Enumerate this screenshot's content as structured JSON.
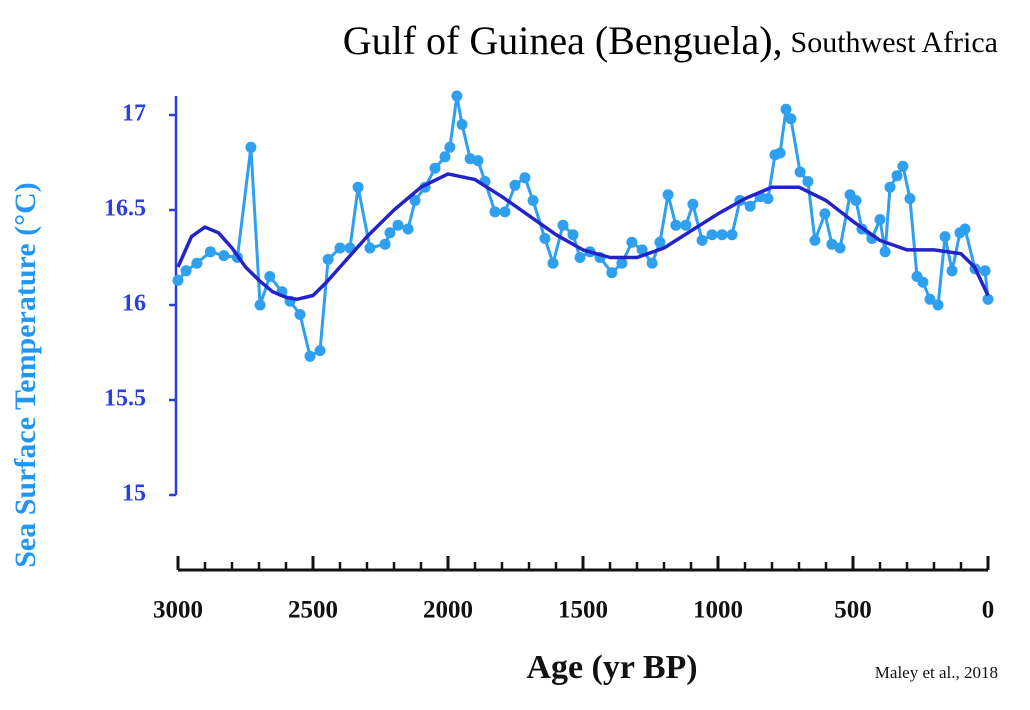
{
  "chart_data": {
    "type": "line",
    "title": "Gulf of Guinea (Benguela),",
    "subtitle": "Southwest Africa",
    "xlabel": "Age (yr BP)",
    "ylabel": "Sea Surface Temperature (°C)",
    "source": "Maley et al., 2018",
    "xlim": [
      3000,
      0
    ],
    "ylim": [
      15,
      17.1
    ],
    "xticks": [
      3000,
      2500,
      2000,
      1500,
      1000,
      500,
      0
    ],
    "xminorticks": [
      2900,
      2800,
      2700,
      2600,
      2400,
      2300,
      2200,
      2100,
      1900,
      1800,
      1700,
      1600,
      1400,
      1300,
      1200,
      1100,
      900,
      800,
      700,
      600,
      400,
      300,
      200,
      100
    ],
    "yticks": [
      15,
      15.5,
      16,
      16.5,
      17
    ],
    "axis_color": "#2b3fe0",
    "ylabel_color": "#2196f3",
    "series": [
      {
        "color": "#2f9ff0",
        "markers": true,
        "x": [
          3000,
          2970,
          2930,
          2880,
          2830,
          2780,
          2730,
          2696,
          2660,
          2615,
          2585,
          2548,
          2511,
          2474,
          2444,
          2400,
          2363,
          2333,
          2289,
          2233,
          2215,
          2185,
          2148,
          2122,
          2085,
          2048,
          2011,
          1993,
          1967,
          1948,
          1918,
          1889,
          1863,
          1826,
          1789,
          1752,
          1715,
          1685,
          1641,
          1611,
          1574,
          1537,
          1511,
          1474,
          1437,
          1393,
          1356,
          1319,
          1281,
          1244,
          1215,
          1185,
          1156,
          1119,
          1093,
          1059,
          1022,
          985,
          948,
          919,
          881,
          844,
          815,
          789,
          770,
          748,
          730,
          696,
          667,
          641,
          604,
          578,
          548,
          511,
          489,
          467,
          430,
          400,
          381,
          363,
          337,
          315,
          289,
          263,
          241,
          215,
          185,
          159,
          133,
          104,
          85,
          48,
          11,
          0
        ],
        "values": [
          16.13,
          16.18,
          16.22,
          16.28,
          16.26,
          16.25,
          16.83,
          16.0,
          16.15,
          16.07,
          16.02,
          15.95,
          15.73,
          15.76,
          16.24,
          16.3,
          16.3,
          16.62,
          16.3,
          16.32,
          16.38,
          16.42,
          16.4,
          16.55,
          16.62,
          16.72,
          16.78,
          16.83,
          17.1,
          16.95,
          16.77,
          16.76,
          16.65,
          16.49,
          16.49,
          16.63,
          16.67,
          16.55,
          16.35,
          16.22,
          16.42,
          16.37,
          16.25,
          16.28,
          16.25,
          16.17,
          16.22,
          16.33,
          16.29,
          16.22,
          16.33,
          16.58,
          16.42,
          16.42,
          16.53,
          16.34,
          16.37,
          16.37,
          16.37,
          16.55,
          16.52,
          16.57,
          16.56,
          16.79,
          16.8,
          17.03,
          16.98,
          16.7,
          16.65,
          16.34,
          16.48,
          16.32,
          16.3,
          16.58,
          16.55,
          16.4,
          16.35,
          16.45,
          16.28,
          16.62,
          16.68,
          16.73,
          16.56,
          16.15,
          16.12,
          16.03,
          16.0,
          16.36,
          16.18,
          16.38,
          16.4,
          16.19,
          16.18,
          16.03
        ]
      },
      {
        "color": "#2323c8",
        "markers": false,
        "x": [
          3000,
          2950,
          2900,
          2850,
          2800,
          2750,
          2700,
          2650,
          2600,
          2560,
          2500,
          2450,
          2400,
          2300,
          2200,
          2100,
          2000,
          1900,
          1800,
          1700,
          1600,
          1500,
          1400,
          1300,
          1200,
          1100,
          1000,
          900,
          800,
          700,
          600,
          500,
          400,
          300,
          200,
          100,
          50,
          0
        ],
        "values": [
          16.2,
          16.36,
          16.41,
          16.38,
          16.3,
          16.2,
          16.13,
          16.07,
          16.04,
          16.03,
          16.05,
          16.12,
          16.2,
          16.36,
          16.5,
          16.62,
          16.69,
          16.66,
          16.57,
          16.47,
          16.37,
          16.29,
          16.25,
          16.25,
          16.3,
          16.39,
          16.48,
          16.56,
          16.62,
          16.62,
          16.55,
          16.44,
          16.34,
          16.29,
          16.29,
          16.27,
          16.2,
          16.05
        ]
      }
    ]
  }
}
